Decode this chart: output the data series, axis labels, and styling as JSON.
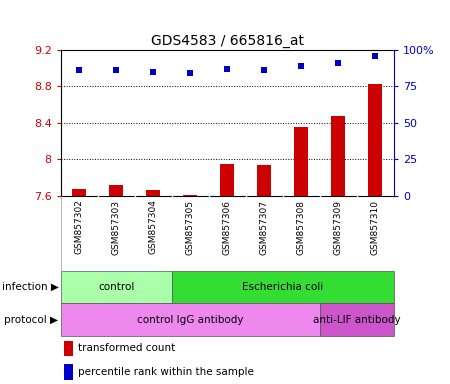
{
  "title": "GDS4583 / 665816_at",
  "samples": [
    "GSM857302",
    "GSM857303",
    "GSM857304",
    "GSM857305",
    "GSM857306",
    "GSM857307",
    "GSM857308",
    "GSM857309",
    "GSM857310"
  ],
  "transformed_count": [
    7.68,
    7.72,
    7.66,
    7.61,
    7.95,
    7.94,
    8.35,
    8.47,
    8.83
  ],
  "percentile_rank": [
    86,
    86,
    85,
    84,
    87,
    86,
    89,
    91,
    96
  ],
  "ylim_left": [
    7.6,
    9.2
  ],
  "ylim_right": [
    0,
    100
  ],
  "yticks_left": [
    7.6,
    8.0,
    8.4,
    8.8,
    9.2
  ],
  "ytick_labels_left": [
    "7.6",
    "8",
    "8.4",
    "8.8",
    "9.2"
  ],
  "yticks_right": [
    0,
    25,
    50,
    75,
    100
  ],
  "ytick_labels_right": [
    "0",
    "25",
    "50",
    "75",
    "100%"
  ],
  "bar_color": "#cc0000",
  "dot_color": "#0000cc",
  "left_tick_color": "#cc0000",
  "right_tick_color": "#0000cc",
  "infection_labels": [
    {
      "text": "control",
      "start": 0,
      "end": 3,
      "color": "#aaffaa"
    },
    {
      "text": "Escherichia coli",
      "start": 3,
      "end": 9,
      "color": "#33dd33"
    }
  ],
  "protocol_labels": [
    {
      "text": "control IgG antibody",
      "start": 0,
      "end": 7,
      "color": "#ee88ee"
    },
    {
      "text": "anti-LIF antibody",
      "start": 7,
      "end": 9,
      "color": "#cc55cc"
    }
  ],
  "legend_items": [
    {
      "color": "#cc0000",
      "label": "transformed count"
    },
    {
      "color": "#0000cc",
      "label": "percentile rank within the sample"
    }
  ],
  "sample_box_color": "#c8c8c8",
  "sample_box_edge": "#999999",
  "bar_width": 0.38
}
